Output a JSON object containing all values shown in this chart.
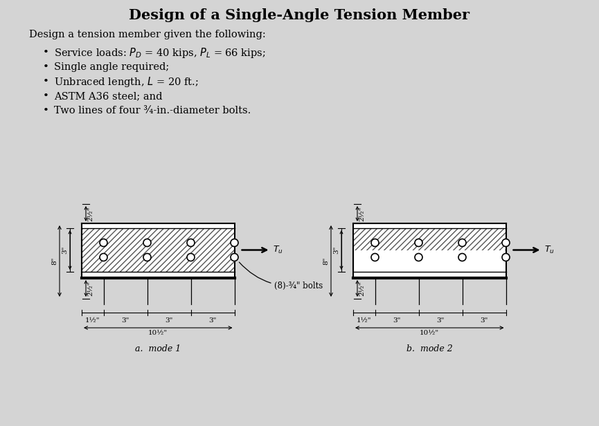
{
  "title": "Design of a Single-Angle Tension Member",
  "subtitle": "Design a tension member given the following:",
  "bullets": [
    "Service loads: $P_D$ = 40 kips, $P_L$ = 66 kips;",
    "Single angle required;",
    "Unbraced length, $L$ = 20 ft.;",
    "ASTM A36 steel; and",
    "Two lines of four ¾-in.-diameter bolts."
  ],
  "bg_color": "#d4d4d4",
  "caption_a": "a.  mode 1",
  "caption_b": "b.  mode 2",
  "bolt_label": "(8)-¾\" bolts",
  "Tu_label": "$T_u$",
  "dim_8": "8\"",
  "dim_3": "3\"",
  "dim_2half": "2½\"",
  "dim_1half": "1½\"",
  "dim_10half": "10½\""
}
